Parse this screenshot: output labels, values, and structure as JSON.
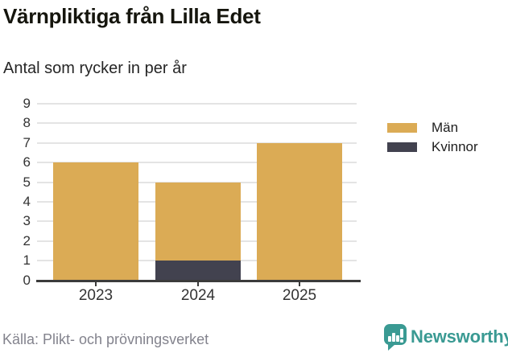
{
  "header": {
    "title": "Värnpliktiga från Lilla Edet",
    "subtitle": "Antal som rycker in per år"
  },
  "chart_data": {
    "type": "bar",
    "stacked": true,
    "title": "Värnpliktiga från Lilla Edet",
    "subtitle": "Antal som rycker in per år",
    "categories": [
      "2023",
      "2024",
      "2025"
    ],
    "series": [
      {
        "name": "Män",
        "color": "#dbab55",
        "values": [
          6,
          4,
          7
        ]
      },
      {
        "name": "Kvinnor",
        "color": "#42424f",
        "values": [
          0,
          1,
          0
        ]
      }
    ],
    "stack_totals": [
      6,
      5,
      7
    ],
    "xlabel": "",
    "ylabel": "",
    "ylim": [
      0,
      9
    ],
    "yticks": [
      0,
      1,
      2,
      3,
      4,
      5,
      6,
      7,
      8,
      9
    ],
    "grid": true,
    "legend_position": "right-top"
  },
  "legend": {
    "entries": [
      {
        "label": "Män",
        "color": "#dbab55"
      },
      {
        "label": "Kvinnor",
        "color": "#42424f"
      }
    ]
  },
  "footer": {
    "source": "Källa: Plikt- och prövningsverket",
    "brand": "Newsworthy",
    "brand_color": "#3a9a93"
  },
  "colors": {
    "men": "#dbab55",
    "women": "#42424f",
    "axis": "#3b3b3b",
    "gridline": "#e4e4e4",
    "source_text": "#83838d",
    "brand_teal": "#3a9a93"
  }
}
